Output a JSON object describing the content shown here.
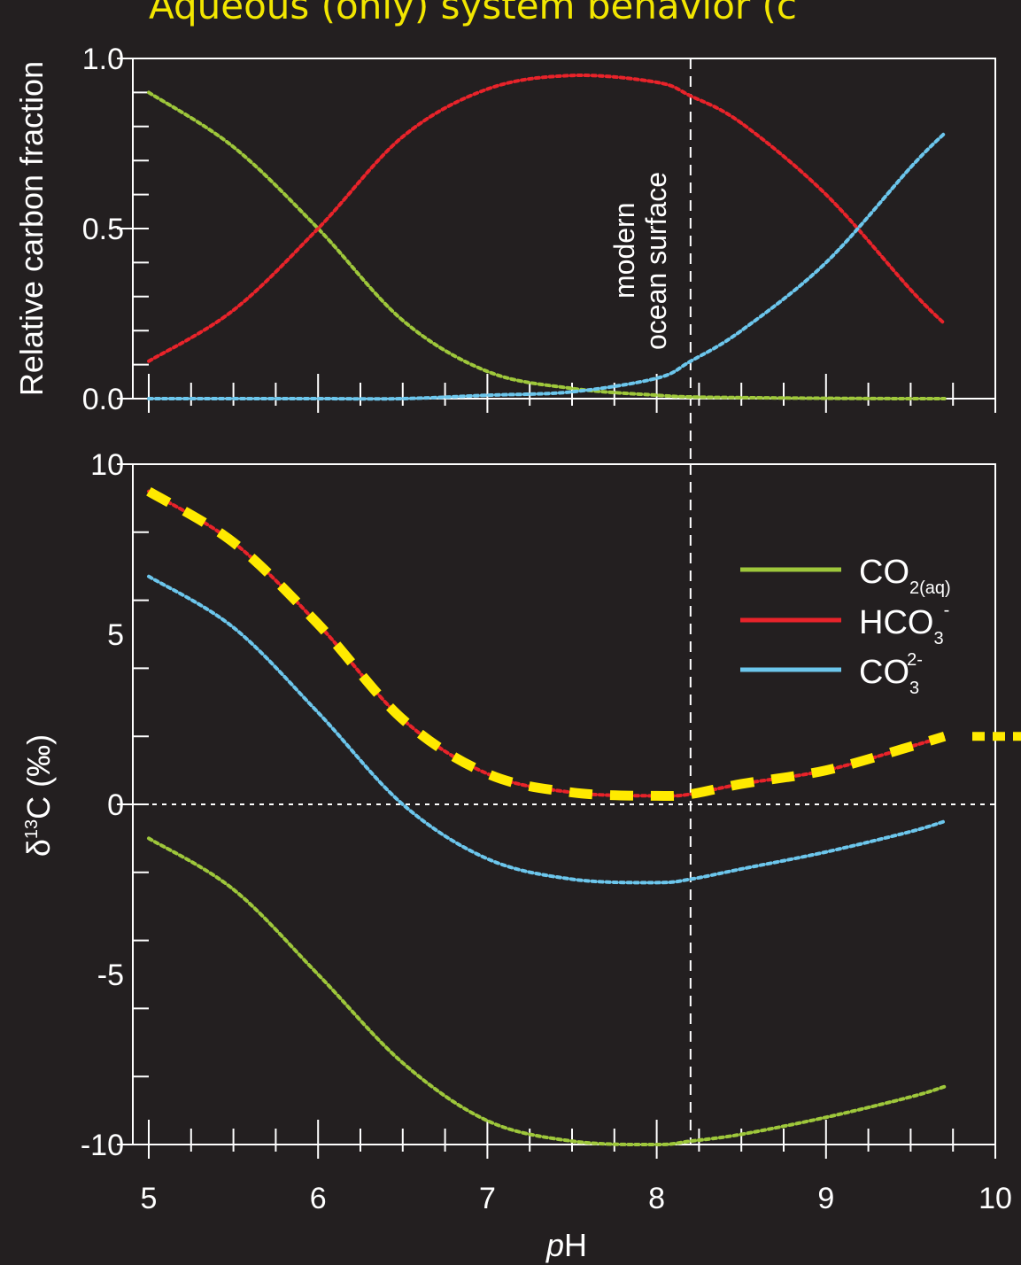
{
  "title": "Aqueous (only) system behavior (c",
  "colors": {
    "co2": "#9ec73b",
    "hco3": "#e8232a",
    "co3": "#6cc6ec",
    "highlight": "#ffea00",
    "axes": "#ffffff",
    "background": "#231f20"
  },
  "annotation": {
    "line1": "modern",
    "line2": "ocean surface"
  },
  "legend": {
    "co2": {
      "base": "CO",
      "sub": "2(aq)",
      "sup": ""
    },
    "hco3": {
      "base": "HCO",
      "sub": "3",
      "sup": "-"
    },
    "co3": {
      "base": "CO",
      "sub": "3",
      "sup": "2-"
    }
  },
  "chart_data": [
    {
      "type": "line",
      "ylabel": "Relative carbon fraction",
      "xlim": [
        5,
        10
      ],
      "ylim": [
        0,
        1
      ],
      "yticks": [
        "0.0",
        "0.5",
        "1.0"
      ],
      "grid": false,
      "vertical_reference_x": 8.2,
      "x": [
        5.0,
        5.5,
        6.0,
        6.5,
        7.0,
        7.5,
        8.0,
        8.2,
        8.5,
        9.0,
        9.5,
        9.7
      ],
      "series": [
        {
          "name": "CO2(aq)",
          "color": "#9ec73b",
          "style": "dotted",
          "values": [
            0.9,
            0.74,
            0.5,
            0.23,
            0.08,
            0.03,
            0.01,
            0.005,
            0.003,
            0.001,
            0.0,
            0.0
          ]
        },
        {
          "name": "HCO3-",
          "color": "#e8232a",
          "style": "dotted",
          "values": [
            0.11,
            0.26,
            0.5,
            0.77,
            0.91,
            0.95,
            0.93,
            0.89,
            0.81,
            0.6,
            0.32,
            0.22
          ]
        },
        {
          "name": "CO3 2-",
          "color": "#6cc6ec",
          "style": "dotted",
          "values": [
            0.0,
            0.0,
            0.0,
            0.0,
            0.01,
            0.02,
            0.06,
            0.11,
            0.2,
            0.4,
            0.68,
            0.78
          ]
        }
      ]
    },
    {
      "type": "line",
      "xlabel": "pH",
      "ylabel": "δ13C (‰)",
      "xlim": [
        5,
        10
      ],
      "ylim": [
        -10,
        10
      ],
      "xticks": [
        "5",
        "6",
        "7",
        "8",
        "9",
        "10"
      ],
      "yticks": [
        "-10",
        "-5",
        "0",
        "5",
        "10"
      ],
      "grid": false,
      "horizontal_reference_y": 0,
      "vertical_reference_x": 8.2,
      "legend_position": "center-right",
      "x": [
        5.0,
        5.5,
        6.0,
        6.5,
        7.0,
        7.5,
        8.0,
        8.2,
        8.5,
        9.0,
        9.5,
        9.7
      ],
      "series": [
        {
          "name": "CO2(aq)",
          "color": "#9ec73b",
          "style": "dotted",
          "values": [
            -1.0,
            -2.5,
            -5.0,
            -7.6,
            -9.3,
            -9.9,
            -10.0,
            -9.9,
            -9.7,
            -9.2,
            -8.6,
            -8.3
          ]
        },
        {
          "name": "HCO3-",
          "color": "#e8232a",
          "style": "dotted",
          "values": [
            9.2,
            7.7,
            5.3,
            2.5,
            0.9,
            0.35,
            0.25,
            0.3,
            0.6,
            1.0,
            1.7,
            2.0
          ]
        },
        {
          "name": "CO3 2-",
          "color": "#6cc6ec",
          "style": "dotted",
          "values": [
            6.7,
            5.2,
            2.7,
            0.0,
            -1.6,
            -2.2,
            -2.3,
            -2.2,
            -1.9,
            -1.4,
            -0.8,
            -0.5
          ]
        },
        {
          "name": "",
          "color": "#ffea00",
          "style": "dashed",
          "values": [
            9.2,
            7.7,
            5.3,
            2.5,
            0.9,
            0.35,
            0.25,
            0.3,
            0.6,
            1.0,
            1.7,
            2.0
          ]
        }
      ],
      "offscale_marker_y": 2.0
    }
  ]
}
